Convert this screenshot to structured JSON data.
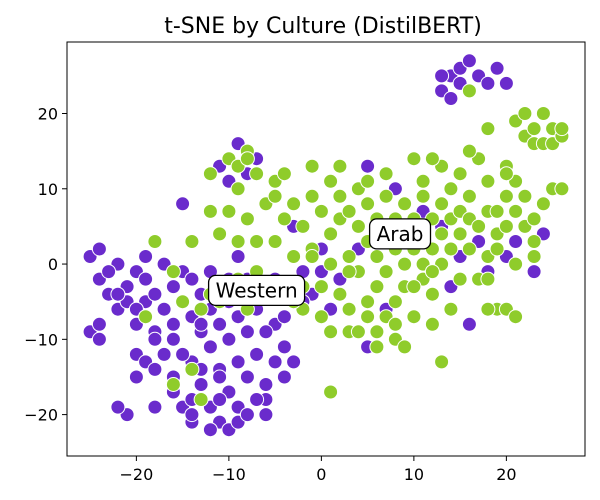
{
  "chart_data": {
    "type": "scatter",
    "title": "t-SNE by Culture (DistilBERT)",
    "xlabel": "",
    "ylabel": "",
    "xlim": [
      -27.5,
      28.5
    ],
    "ylim": [
      -25.5,
      29.5
    ],
    "xticks": [
      -20,
      -10,
      0,
      10,
      20
    ],
    "yticks": [
      -20,
      -10,
      0,
      10,
      20
    ],
    "xtick_labels": [
      "−20",
      "−10",
      "0",
      "10",
      "20"
    ],
    "ytick_labels": [
      "−20",
      "−10",
      "0",
      "10",
      "20"
    ],
    "grid": false,
    "legend": "none",
    "annotations": [
      {
        "text": "Arab",
        "x": 8.5,
        "y": 4.0
      },
      {
        "text": "Western",
        "x": -7.0,
        "y": -3.5
      }
    ],
    "series": [
      {
        "color": "#6a2bcc",
        "points": [
          [
            -25,
            1
          ],
          [
            -24,
            2
          ],
          [
            -25,
            -9
          ],
          [
            -24,
            -10
          ],
          [
            -24,
            -2
          ],
          [
            -23,
            -4
          ],
          [
            -22,
            -6
          ],
          [
            -22,
            0
          ],
          [
            -21,
            -3
          ],
          [
            -21,
            -5
          ],
          [
            -20,
            -8
          ],
          [
            -20,
            -12
          ],
          [
            -20,
            -1
          ],
          [
            -19,
            -5
          ],
          [
            -19,
            -13
          ],
          [
            -19,
            1
          ],
          [
            -18,
            -4
          ],
          [
            -18,
            -9
          ],
          [
            -17,
            -12
          ],
          [
            -17,
            -6
          ],
          [
            -16,
            -3
          ],
          [
            -16,
            -15
          ],
          [
            -16,
            -10
          ],
          [
            -15,
            -1
          ],
          [
            -15,
            -5
          ],
          [
            -15,
            8
          ],
          [
            -14,
            -2
          ],
          [
            -14,
            -7
          ],
          [
            -14,
            -13
          ],
          [
            -13,
            -4
          ],
          [
            -13,
            -9
          ],
          [
            -13,
            -16
          ],
          [
            -12,
            -1
          ],
          [
            -12,
            -6
          ],
          [
            -12,
            -11
          ],
          [
            -12,
            -19
          ],
          [
            -11,
            -3
          ],
          [
            -11,
            -8
          ],
          [
            -11,
            -14
          ],
          [
            -11,
            -21
          ],
          [
            -10,
            -5
          ],
          [
            -10,
            -10
          ],
          [
            -10,
            -17
          ],
          [
            -10,
            -22
          ],
          [
            -9,
            -7
          ],
          [
            -9,
            -13
          ],
          [
            -9,
            -19
          ],
          [
            -8,
            -2
          ],
          [
            -8,
            -9
          ],
          [
            -8,
            -15
          ],
          [
            -7,
            -12
          ],
          [
            -7,
            -6
          ],
          [
            -6,
            -3
          ],
          [
            -6,
            -16
          ],
          [
            -6,
            -20
          ],
          [
            -5,
            -8
          ],
          [
            -4,
            -11
          ],
          [
            -3,
            -13
          ],
          [
            -2,
            -1
          ],
          [
            -1,
            -4
          ],
          [
            0,
            2
          ],
          [
            1,
            -6
          ],
          [
            -11,
            13
          ],
          [
            -9,
            16
          ],
          [
            -8,
            12
          ],
          [
            -7,
            14
          ],
          [
            -10,
            11
          ],
          [
            -13,
            -8
          ],
          [
            -15,
            -19
          ],
          [
            -14,
            -21
          ],
          [
            -12,
            -22
          ],
          [
            -9,
            -21
          ],
          [
            -8,
            -20
          ],
          [
            -18,
            -19
          ],
          [
            -21,
            -20
          ],
          [
            -22,
            -19
          ],
          [
            -20,
            -15
          ],
          [
            -23,
            -1
          ],
          [
            -17,
            0
          ],
          [
            -16,
            -17
          ],
          [
            -14,
            -18
          ],
          [
            -10,
            -2
          ],
          [
            -9,
            1
          ],
          [
            -5,
            -2
          ],
          [
            -3,
            5
          ],
          [
            2,
            6
          ],
          [
            4,
            2
          ],
          [
            5,
            13
          ],
          [
            7,
            -6
          ],
          [
            8,
            10
          ],
          [
            10,
            -3
          ],
          [
            11,
            7
          ],
          [
            13,
            5
          ],
          [
            14,
            -3
          ],
          [
            15,
            1
          ],
          [
            16,
            -8
          ],
          [
            17,
            3
          ],
          [
            18,
            -1
          ],
          [
            20,
            1
          ],
          [
            21,
            3
          ],
          [
            23,
            -1
          ],
          [
            24,
            4
          ],
          [
            14,
            25
          ],
          [
            15,
            26
          ],
          [
            16,
            27
          ],
          [
            15,
            24
          ],
          [
            16,
            23
          ],
          [
            17,
            25
          ],
          [
            18,
            24
          ],
          [
            19,
            26
          ],
          [
            20,
            24
          ],
          [
            13,
            23
          ],
          [
            14,
            22
          ],
          [
            13,
            25
          ],
          [
            -4,
            -15
          ],
          [
            -6,
            -18
          ],
          [
            -2,
            -5
          ],
          [
            -15,
            -12
          ],
          [
            -18,
            -14
          ],
          [
            -22,
            -4
          ],
          [
            -20,
            -6
          ],
          [
            -19,
            -2
          ],
          [
            -16,
            -8
          ],
          [
            -13,
            -14
          ],
          [
            -11,
            -15
          ],
          [
            -7,
            -18
          ],
          [
            -5,
            -13
          ],
          [
            0,
            -1
          ],
          [
            2,
            -2
          ],
          [
            5,
            -11
          ],
          [
            6,
            -11
          ],
          [
            -24,
            -8
          ],
          [
            -18,
            -10
          ],
          [
            -14,
            -20
          ],
          [
            -11,
            -18
          ],
          [
            -9,
            -4
          ],
          [
            -6,
            -9
          ],
          [
            -4,
            -7
          ]
        ]
      },
      {
        "color": "#8fcc2b",
        "points": [
          [
            -18,
            3
          ],
          [
            -16,
            -1
          ],
          [
            -14,
            3
          ],
          [
            -13,
            -6
          ],
          [
            -12,
            7
          ],
          [
            -11,
            4
          ],
          [
            -10,
            14
          ],
          [
            -10,
            7
          ],
          [
            -9,
            3
          ],
          [
            -9,
            10
          ],
          [
            -8,
            15
          ],
          [
            -8,
            6
          ],
          [
            -7,
            -1
          ],
          [
            -7,
            12
          ],
          [
            -6,
            8
          ],
          [
            -6,
            -4
          ],
          [
            -5,
            3
          ],
          [
            -5,
            11
          ],
          [
            -4,
            6
          ],
          [
            -4,
            -3
          ],
          [
            -3,
            8
          ],
          [
            -3,
            1
          ],
          [
            -2,
            5
          ],
          [
            -2,
            -6
          ],
          [
            -1,
            9
          ],
          [
            -1,
            2
          ],
          [
            0,
            7
          ],
          [
            0,
            -3
          ],
          [
            1,
            4
          ],
          [
            1,
            11
          ],
          [
            1,
            -9
          ],
          [
            2,
            6
          ],
          [
            2,
            -4
          ],
          [
            2,
            9
          ],
          [
            3,
            1
          ],
          [
            3,
            7
          ],
          [
            3,
            -6
          ],
          [
            4,
            5
          ],
          [
            4,
            -1
          ],
          [
            4,
            10
          ],
          [
            5,
            3
          ],
          [
            5,
            8
          ],
          [
            5,
            -5
          ],
          [
            5,
            11
          ],
          [
            6,
            1
          ],
          [
            6,
            6
          ],
          [
            6,
            -3
          ],
          [
            6,
            -9
          ],
          [
            7,
            4
          ],
          [
            7,
            9
          ],
          [
            7,
            -1
          ],
          [
            7,
            -7
          ],
          [
            8,
            2
          ],
          [
            8,
            6
          ],
          [
            8,
            -5
          ],
          [
            8,
            -10
          ],
          [
            9,
            0
          ],
          [
            9,
            4
          ],
          [
            9,
            8
          ],
          [
            9,
            -3
          ],
          [
            10,
            2
          ],
          [
            10,
            6
          ],
          [
            10,
            -7
          ],
          [
            10,
            14
          ],
          [
            11,
            0
          ],
          [
            11,
            4
          ],
          [
            11,
            -2
          ],
          [
            11,
            9
          ],
          [
            12,
            2
          ],
          [
            12,
            6
          ],
          [
            12,
            -4
          ],
          [
            12,
            -8
          ],
          [
            13,
            0
          ],
          [
            13,
            4
          ],
          [
            13,
            8
          ],
          [
            13,
            13
          ],
          [
            14,
            2
          ],
          [
            14,
            6
          ],
          [
            14,
            10
          ],
          [
            14,
            -6
          ],
          [
            15,
            4
          ],
          [
            15,
            7
          ],
          [
            15,
            12
          ],
          [
            16,
            2
          ],
          [
            16,
            6
          ],
          [
            16,
            9
          ],
          [
            16,
            23
          ],
          [
            17,
            5
          ],
          [
            17,
            -2
          ],
          [
            17,
            14
          ],
          [
            18,
            7
          ],
          [
            18,
            1
          ],
          [
            18,
            11
          ],
          [
            19,
            4
          ],
          [
            19,
            7
          ],
          [
            19,
            -6
          ],
          [
            20,
            5
          ],
          [
            20,
            9
          ],
          [
            20,
            -6
          ],
          [
            20,
            13
          ],
          [
            21,
            7
          ],
          [
            21,
            11
          ],
          [
            21,
            -7
          ],
          [
            21,
            19
          ],
          [
            22,
            5
          ],
          [
            22,
            9
          ],
          [
            22,
            17
          ],
          [
            22,
            20
          ],
          [
            23,
            6
          ],
          [
            23,
            16
          ],
          [
            23,
            18
          ],
          [
            23,
            3
          ],
          [
            24,
            8
          ],
          [
            24,
            16
          ],
          [
            24,
            20
          ],
          [
            25,
            10
          ],
          [
            25,
            16
          ],
          [
            25,
            18
          ],
          [
            26,
            10
          ],
          [
            26,
            17
          ],
          [
            26,
            18
          ],
          [
            -19,
            -7
          ],
          [
            -15,
            -5
          ],
          [
            -12,
            -4
          ],
          [
            -8,
            -6
          ],
          [
            -3,
            -5
          ],
          [
            0,
            -7
          ],
          [
            1,
            -17
          ],
          [
            3,
            -9
          ],
          [
            4,
            -9
          ],
          [
            6,
            -11
          ],
          [
            9,
            -11
          ],
          [
            13,
            -13
          ],
          [
            15,
            -2
          ],
          [
            18,
            -6
          ],
          [
            18,
            -2
          ],
          [
            19,
            2
          ],
          [
            21,
            0
          ],
          [
            23,
            1
          ],
          [
            -14,
            -14
          ],
          [
            -16,
            -16
          ],
          [
            -13,
            -18
          ],
          [
            -11,
            -5
          ],
          [
            -9,
            -2
          ],
          [
            -2,
            -3
          ],
          [
            -4,
            12
          ],
          [
            -1,
            13
          ],
          [
            2,
            13
          ],
          [
            7,
            12
          ],
          [
            11,
            11
          ],
          [
            12,
            14
          ],
          [
            16,
            15
          ],
          [
            18,
            18
          ],
          [
            20,
            12
          ],
          [
            12,
            -1
          ],
          [
            10,
            -3
          ],
          [
            8,
            -8
          ],
          [
            5,
            -7
          ],
          [
            3,
            -1
          ],
          [
            1,
            0
          ],
          [
            -1,
            1
          ],
          [
            -5,
            9
          ],
          [
            -7,
            3
          ],
          [
            -9,
            13
          ],
          [
            -8,
            14
          ],
          [
            -12,
            12
          ]
        ]
      }
    ]
  }
}
